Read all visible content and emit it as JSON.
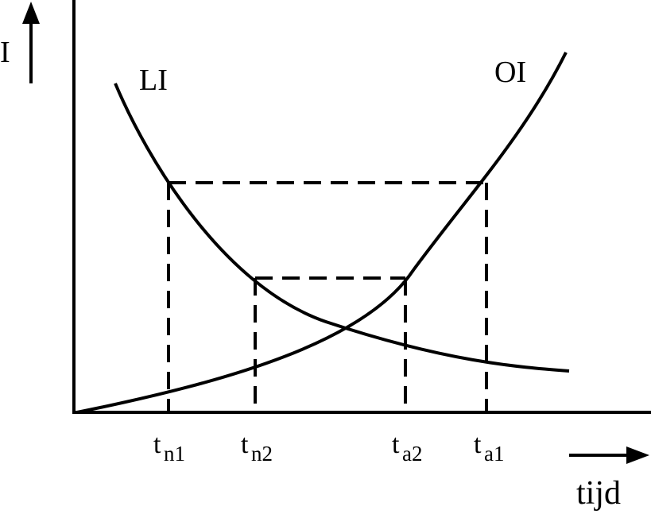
{
  "axes": {
    "y_label": "I",
    "x_label": "tijd"
  },
  "curves": {
    "li": {
      "label": "LI"
    },
    "oi": {
      "label": "OI"
    }
  },
  "ticks": [
    {
      "main": "t",
      "sub": "n1"
    },
    {
      "main": "t",
      "sub": "n2"
    },
    {
      "main": "t",
      "sub": "a2"
    },
    {
      "main": "t",
      "sub": "a1"
    }
  ],
  "colors": {
    "stroke": "#000000",
    "background": "#ffffff"
  }
}
